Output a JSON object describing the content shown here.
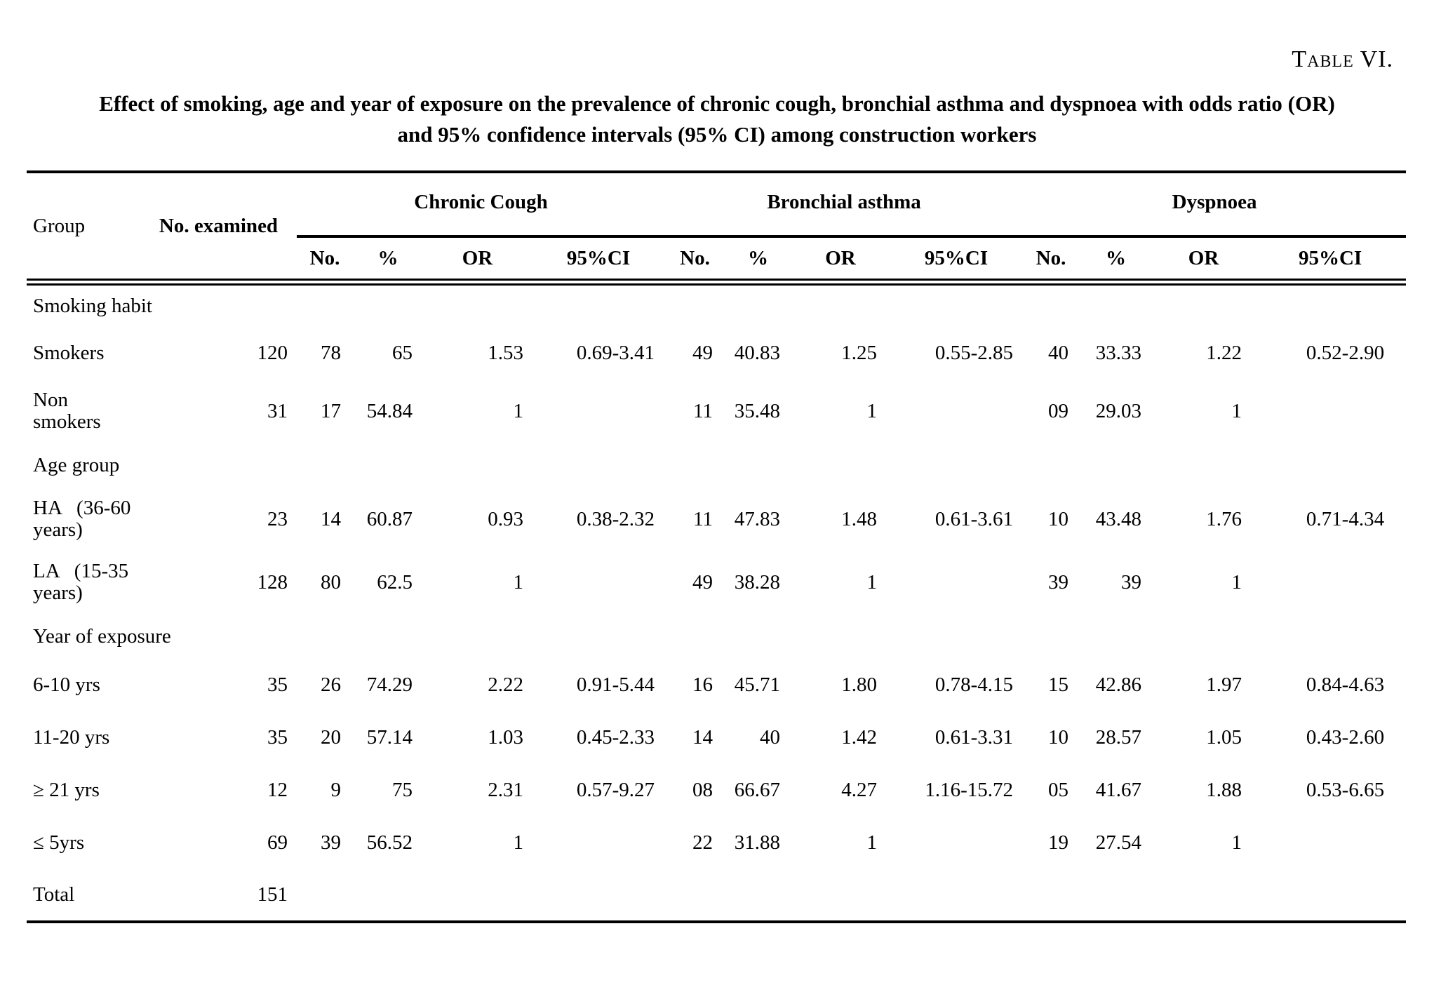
{
  "heading": {
    "table_label": "Table VI.",
    "caption": "Effect of smoking, age and year of exposure on the prevalence of chronic cough, bronchial asthma and dyspnoea with odds ratio (OR)\nand 95% confidence intervals (95% CI) among construction workers"
  },
  "table": {
    "headers": {
      "group": "Group",
      "no_examined": "No. examined",
      "conditions": [
        "Chronic Cough",
        "Bronchial asthma",
        "Dyspnoea"
      ],
      "sub": [
        "No.",
        "%",
        "OR",
        "95%CI"
      ]
    },
    "rows": [
      {
        "type": "section",
        "label": "Smoking habit"
      },
      {
        "type": "data",
        "label": "Smokers",
        "examined": "120",
        "cells": [
          "78",
          "65",
          "1.53",
          "0.69-3.41",
          "49",
          "40.83",
          "1.25",
          "0.55-2.85",
          "40",
          "33.33",
          "1.22",
          "0.52-2.90"
        ]
      },
      {
        "type": "data",
        "label": "Non\nsmokers",
        "examined": "31",
        "cells": [
          "17",
          "54.84",
          "1",
          "",
          "11",
          "35.48",
          "1",
          "",
          "09",
          "29.03",
          "1",
          ""
        ]
      },
      {
        "type": "section",
        "label": "Age group"
      },
      {
        "type": "data",
        "label": "HA   (36-60\nyears)",
        "examined": "23",
        "cells": [
          "14",
          "60.87",
          "0.93",
          "0.38-2.32",
          "11",
          "47.83",
          "1.48",
          "0.61-3.61",
          "10",
          "43.48",
          "1.76",
          "0.71-4.34"
        ]
      },
      {
        "type": "data",
        "label": "LA   (15-35\nyears)",
        "examined": "128",
        "cells": [
          "80",
          "62.5",
          "1",
          "",
          "49",
          "38.28",
          "1",
          "",
          "39",
          "39",
          "1",
          ""
        ]
      },
      {
        "type": "section",
        "label": "Year of exposure"
      },
      {
        "type": "data",
        "label": "6-10 yrs",
        "examined": "35",
        "cells": [
          "26",
          "74.29",
          "2.22",
          "0.91-5.44",
          "16",
          "45.71",
          "1.80",
          "0.78-4.15",
          "15",
          "42.86",
          "1.97",
          "0.84-4.63"
        ]
      },
      {
        "type": "data",
        "label": "11-20 yrs",
        "examined": "35",
        "cells": [
          "20",
          "57.14",
          "1.03",
          "0.45-2.33",
          "14",
          "40",
          "1.42",
          "0.61-3.31",
          "10",
          "28.57",
          "1.05",
          "0.43-2.60"
        ]
      },
      {
        "type": "data",
        "label": "≥ 21 yrs",
        "examined": "12",
        "cells": [
          "9",
          "75",
          "2.31",
          "0.57-9.27",
          "08",
          "66.67",
          "4.27",
          "1.16-15.72",
          "05",
          "41.67",
          "1.88",
          "0.53-6.65"
        ]
      },
      {
        "type": "data",
        "label": "≤ 5yrs",
        "examined": "69",
        "cells": [
          "39",
          "56.52",
          "1",
          "",
          "22",
          "31.88",
          "1",
          "",
          "19",
          "27.54",
          "1",
          ""
        ]
      },
      {
        "type": "data",
        "label": "Total",
        "examined": "151",
        "cells": [
          "",
          "",
          "",
          "",
          "",
          "",
          "",
          "",
          "",
          "",
          "",
          ""
        ]
      }
    ]
  }
}
